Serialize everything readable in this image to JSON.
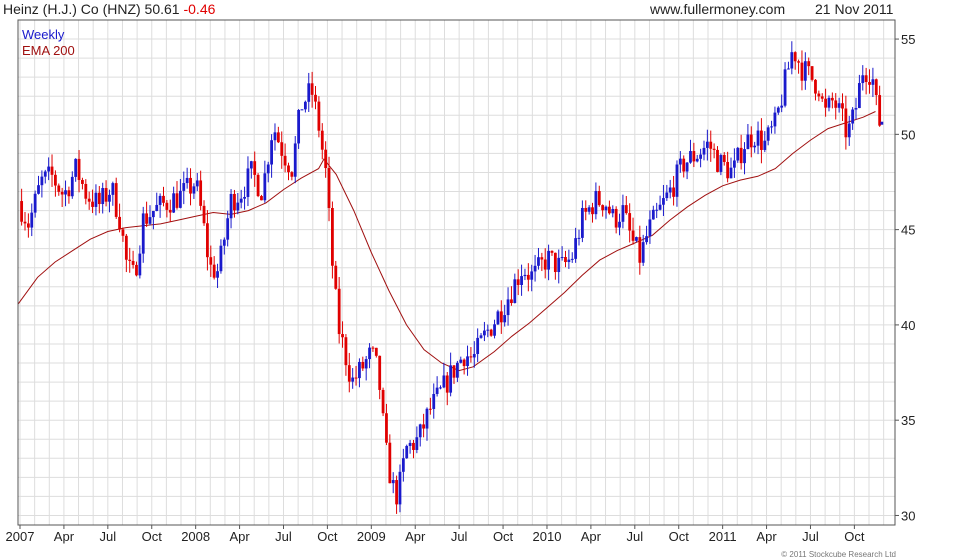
{
  "header": {
    "security": "Heinz (H.J.) Co (HNZ) 50.61",
    "change": "-0.46",
    "website": "www.fullermoney.com",
    "date": "21 Nov 2011"
  },
  "colors": {
    "up_candle": "#1a1acc",
    "down_candle": "#e00000",
    "ema_line": "#a01010",
    "grid": "#dddddd",
    "frame": "#555555",
    "weekly_label": "#1a1acc",
    "ema_label": "#a01010"
  },
  "copyright": "© 2011 Stockcube Research Ltd",
  "chart_data": {
    "type": "candlestick",
    "title": "Heinz (H.J.) Co (HNZ) 50.61 -0.46",
    "series": [
      {
        "name": "Weekly",
        "kind": "price"
      },
      {
        "name": "EMA 200",
        "kind": "moving_average"
      }
    ],
    "y_axis": {
      "side": "right",
      "ylim": [
        29.5,
        56
      ],
      "ticks": [
        30,
        35,
        40,
        45,
        50,
        55
      ]
    },
    "x_axis": {
      "range": [
        2007.0,
        2011.93
      ],
      "ticks": [
        {
          "label": "2007",
          "t": 2007.0
        },
        {
          "label": "Apr",
          "t": 2007.25
        },
        {
          "label": "Jul",
          "t": 2007.5
        },
        {
          "label": "Oct",
          "t": 2007.75
        },
        {
          "label": "2008",
          "t": 2008.0
        },
        {
          "label": "Apr",
          "t": 2008.25
        },
        {
          "label": "Jul",
          "t": 2008.5
        },
        {
          "label": "Oct",
          "t": 2008.75
        },
        {
          "label": "2009",
          "t": 2009.0
        },
        {
          "label": "Apr",
          "t": 2009.25
        },
        {
          "label": "Jul",
          "t": 2009.5
        },
        {
          "label": "Oct",
          "t": 2009.75
        },
        {
          "label": "2010",
          "t": 2010.0
        },
        {
          "label": "Apr",
          "t": 2010.25
        },
        {
          "label": "Jul",
          "t": 2010.5
        },
        {
          "label": "Oct",
          "t": 2010.75
        },
        {
          "label": "2011",
          "t": 2011.0
        },
        {
          "label": "Apr",
          "t": 2011.25
        },
        {
          "label": "Jul",
          "t": 2011.5
        },
        {
          "label": "Oct",
          "t": 2011.75
        }
      ]
    },
    "grid": true,
    "legend_position": "top-left",
    "price_path": [
      [
        2006.99,
        46.5
      ],
      [
        2007.05,
        45.3
      ],
      [
        2007.12,
        47.5
      ],
      [
        2007.18,
        47.8
      ],
      [
        2007.25,
        46.8
      ],
      [
        2007.32,
        48.2
      ],
      [
        2007.38,
        46.8
      ],
      [
        2007.45,
        46.3
      ],
      [
        2007.52,
        47.2
      ],
      [
        2007.57,
        45.5
      ],
      [
        2007.61,
        43.0
      ],
      [
        2007.65,
        42.5
      ],
      [
        2007.7,
        45.5
      ],
      [
        2007.76,
        46.0
      ],
      [
        2007.85,
        46.5
      ],
      [
        2007.92,
        46.8
      ],
      [
        2008.0,
        47.5
      ],
      [
        2008.04,
        45.5
      ],
      [
        2008.08,
        43.0
      ],
      [
        2008.13,
        42.8
      ],
      [
        2008.2,
        46.5
      ],
      [
        2008.26,
        47.0
      ],
      [
        2008.32,
        48.0
      ],
      [
        2008.38,
        47.0
      ],
      [
        2008.44,
        50.5
      ],
      [
        2008.5,
        49.0
      ],
      [
        2008.55,
        48.2
      ],
      [
        2008.6,
        51.5
      ],
      [
        2008.66,
        52.3
      ],
      [
        2008.7,
        50.5
      ],
      [
        2008.74,
        48.0
      ],
      [
        2008.78,
        43.0
      ],
      [
        2008.81,
        40.0
      ],
      [
        2008.85,
        38.5
      ],
      [
        2008.89,
        37.0
      ],
      [
        2008.93,
        37.5
      ],
      [
        2009.0,
        38.5
      ],
      [
        2009.04,
        37.5
      ],
      [
        2009.08,
        33.5
      ],
      [
        2009.12,
        31.5
      ],
      [
        2009.15,
        31.0
      ],
      [
        2009.2,
        33.5
      ],
      [
        2009.27,
        34.0
      ],
      [
        2009.33,
        35.5
      ],
      [
        2009.4,
        36.5
      ],
      [
        2009.46,
        37.5
      ],
      [
        2009.53,
        38.5
      ],
      [
        2009.58,
        38.2
      ],
      [
        2009.65,
        39.5
      ],
      [
        2009.72,
        40.5
      ],
      [
        2009.78,
        41.5
      ],
      [
        2009.86,
        43.0
      ],
      [
        2009.92,
        42.5
      ],
      [
        2010.0,
        43.5
      ],
      [
        2010.08,
        43.0
      ],
      [
        2010.14,
        43.5
      ],
      [
        2010.2,
        45.5
      ],
      [
        2010.27,
        46.5
      ],
      [
        2010.33,
        46.5
      ],
      [
        2010.38,
        45.5
      ],
      [
        2010.43,
        46.0
      ],
      [
        2010.48,
        44.5
      ],
      [
        2010.53,
        43.5
      ],
      [
        2010.58,
        45.0
      ],
      [
        2010.63,
        45.8
      ],
      [
        2010.7,
        47.0
      ],
      [
        2010.78,
        48.5
      ],
      [
        2010.86,
        49.0
      ],
      [
        2010.92,
        49.5
      ],
      [
        2010.98,
        48.5
      ],
      [
        2011.06,
        48.0
      ],
      [
        2011.12,
        49.5
      ],
      [
        2011.18,
        50.0
      ],
      [
        2011.24,
        49.5
      ],
      [
        2011.3,
        50.5
      ],
      [
        2011.35,
        52.5
      ],
      [
        2011.4,
        54.5
      ],
      [
        2011.45,
        53.5
      ],
      [
        2011.5,
        53.0
      ],
      [
        2011.55,
        52.5
      ],
      [
        2011.58,
        51.0
      ],
      [
        2011.63,
        51.8
      ],
      [
        2011.67,
        51.0
      ],
      [
        2011.71,
        50.0
      ],
      [
        2011.75,
        51.0
      ],
      [
        2011.8,
        53.5
      ],
      [
        2011.85,
        53.2
      ],
      [
        2011.88,
        51.1
      ],
      [
        2011.895,
        50.61
      ]
    ],
    "ema_path": [
      [
        2006.99,
        41.1
      ],
      [
        2007.1,
        42.5
      ],
      [
        2007.2,
        43.3
      ],
      [
        2007.3,
        43.9
      ],
      [
        2007.4,
        44.5
      ],
      [
        2007.5,
        44.9
      ],
      [
        2007.6,
        45.1
      ],
      [
        2007.7,
        45.2
      ],
      [
        2007.8,
        45.3
      ],
      [
        2007.9,
        45.5
      ],
      [
        2008.0,
        45.7
      ],
      [
        2008.1,
        45.9
      ],
      [
        2008.2,
        45.8
      ],
      [
        2008.3,
        46.0
      ],
      [
        2008.4,
        46.4
      ],
      [
        2008.5,
        47.1
      ],
      [
        2008.6,
        47.7
      ],
      [
        2008.7,
        48.2
      ],
      [
        2008.73,
        48.7
      ],
      [
        2008.8,
        47.9
      ],
      [
        2008.9,
        46.0
      ],
      [
        2009.0,
        43.8
      ],
      [
        2009.1,
        41.8
      ],
      [
        2009.2,
        40.0
      ],
      [
        2009.3,
        38.7
      ],
      [
        2009.4,
        38.0
      ],
      [
        2009.5,
        37.6
      ],
      [
        2009.58,
        37.8
      ],
      [
        2009.7,
        38.6
      ],
      [
        2009.8,
        39.4
      ],
      [
        2009.9,
        40.1
      ],
      [
        2010.0,
        40.9
      ],
      [
        2010.1,
        41.7
      ],
      [
        2010.2,
        42.6
      ],
      [
        2010.3,
        43.4
      ],
      [
        2010.4,
        43.9
      ],
      [
        2010.5,
        44.3
      ],
      [
        2010.6,
        44.7
      ],
      [
        2010.7,
        45.5
      ],
      [
        2010.8,
        46.2
      ],
      [
        2010.9,
        46.8
      ],
      [
        2011.0,
        47.3
      ],
      [
        2011.1,
        47.6
      ],
      [
        2011.2,
        47.8
      ],
      [
        2011.3,
        48.2
      ],
      [
        2011.4,
        49.0
      ],
      [
        2011.5,
        49.7
      ],
      [
        2011.6,
        50.3
      ],
      [
        2011.7,
        50.6
      ],
      [
        2011.8,
        50.9
      ],
      [
        2011.87,
        51.2
      ]
    ],
    "last_close": 50.61
  }
}
